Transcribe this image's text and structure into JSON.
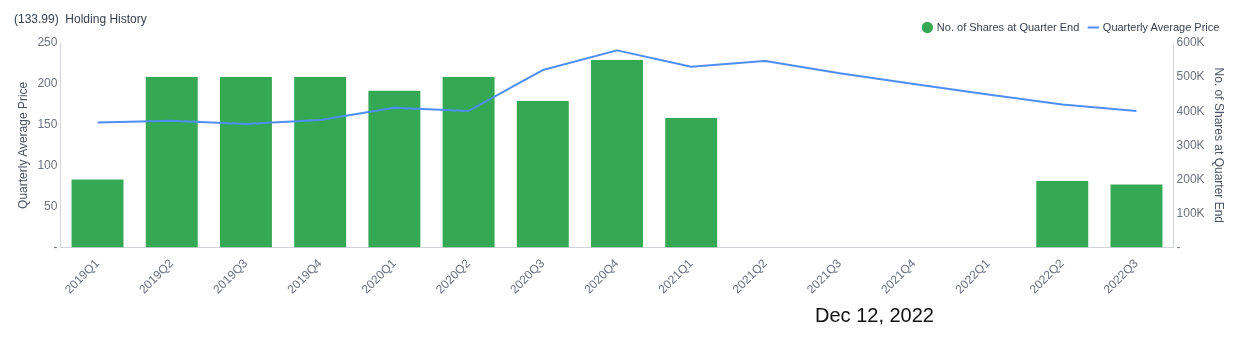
{
  "chart_data": {
    "type": "bar",
    "title": "(133.99)  Holding History",
    "categories": [
      "2019Q1",
      "2019Q2",
      "2019Q3",
      "2019Q4",
      "2020Q1",
      "2020Q2",
      "2020Q3",
      "2020Q4",
      "2021Q1",
      "2021Q2",
      "2021Q3",
      "2021Q4",
      "2022Q1",
      "2022Q2",
      "2022Q3"
    ],
    "series": [
      {
        "name": "No. of Shares at Quarter End",
        "axis": "y2",
        "color": "#34a853",
        "values": [
          200000,
          500000,
          500000,
          500000,
          460000,
          500000,
          430000,
          550000,
          380000,
          null,
          null,
          null,
          null,
          195000,
          185000
        ]
      },
      {
        "name": "Quarterly Average Price",
        "type": "line",
        "color": "#4e8ef7",
        "marker": "none",
        "values": [
          153,
          155,
          151,
          156,
          171,
          167,
          217,
          241,
          221,
          228,
          213,
          200,
          187,
          175,
          167
        ]
      }
    ],
    "ylabel": "Quarterly Average Price",
    "y2label": "No. of Shares at Quarter End",
    "ylim": [
      0,
      250
    ],
    "yticks": [
      {
        "value": 0,
        "label": "-"
      },
      50,
      100,
      150,
      200,
      250
    ],
    "y2lim": [
      0,
      600000
    ],
    "y2ticks": [
      {
        "value": 0,
        "label": "-"
      },
      {
        "value": 100000,
        "label": "100K"
      },
      {
        "value": 200000,
        "label": "200K"
      },
      {
        "value": 300000,
        "label": "300K"
      },
      {
        "value": 400000,
        "label": "400K"
      },
      {
        "value": 500000,
        "label": "500K"
      },
      {
        "value": 600000,
        "label": "600K"
      }
    ],
    "grid": false,
    "legend": "top right",
    "annotations": [
      "Dec 12, 2022"
    ]
  }
}
